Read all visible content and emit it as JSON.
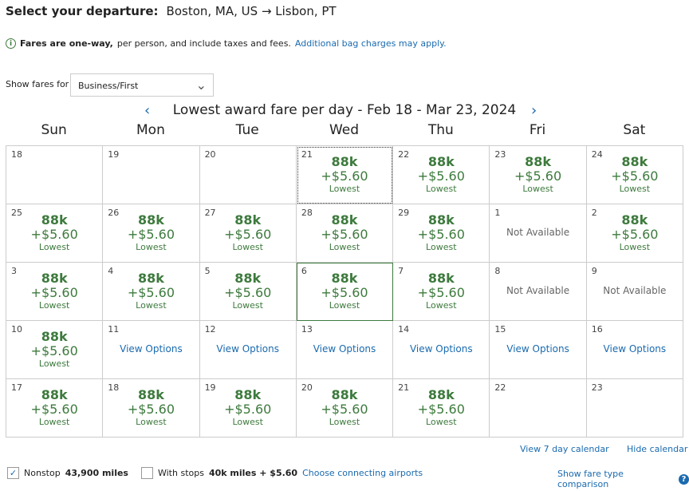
{
  "header": {
    "label": "Select your departure:",
    "route": "Boston, MA, US → Lisbon, PT"
  },
  "info": {
    "bold": "Fares are one-way,",
    "text": "per person, and include taxes and fees.",
    "link": "Additional bag charges may apply."
  },
  "fare_filter": {
    "label": "Show fares for",
    "selected": "Business/First"
  },
  "calendar": {
    "title": "Lowest award fare per day - Feb 18 - Mar 23, 2024",
    "weekdays": [
      "Sun",
      "Mon",
      "Tue",
      "Wed",
      "Thu",
      "Fri",
      "Sat"
    ],
    "cells": [
      {
        "day": "18"
      },
      {
        "day": "19"
      },
      {
        "day": "20"
      },
      {
        "day": "21",
        "miles": "88k",
        "tax": "+$5.60",
        "note": "Lowest",
        "focused": true
      },
      {
        "day": "22",
        "miles": "88k",
        "tax": "+$5.60",
        "note": "Lowest"
      },
      {
        "day": "23",
        "miles": "88k",
        "tax": "+$5.60",
        "note": "Lowest"
      },
      {
        "day": "24",
        "miles": "88k",
        "tax": "+$5.60",
        "note": "Lowest"
      },
      {
        "day": "25",
        "miles": "88k",
        "tax": "+$5.60",
        "note": "Lowest"
      },
      {
        "day": "26",
        "miles": "88k",
        "tax": "+$5.60",
        "note": "Lowest"
      },
      {
        "day": "27",
        "miles": "88k",
        "tax": "+$5.60",
        "note": "Lowest"
      },
      {
        "day": "28",
        "miles": "88k",
        "tax": "+$5.60",
        "note": "Lowest"
      },
      {
        "day": "29",
        "miles": "88k",
        "tax": "+$5.60",
        "note": "Lowest"
      },
      {
        "day": "1",
        "status": "Not Available"
      },
      {
        "day": "2",
        "miles": "88k",
        "tax": "+$5.60",
        "note": "Lowest"
      },
      {
        "day": "3",
        "miles": "88k",
        "tax": "+$5.60",
        "note": "Lowest"
      },
      {
        "day": "4",
        "miles": "88k",
        "tax": "+$5.60",
        "note": "Lowest"
      },
      {
        "day": "5",
        "miles": "88k",
        "tax": "+$5.60",
        "note": "Lowest"
      },
      {
        "day": "6",
        "miles": "88k",
        "tax": "+$5.60",
        "note": "Lowest",
        "selected": true
      },
      {
        "day": "7",
        "miles": "88k",
        "tax": "+$5.60",
        "note": "Lowest"
      },
      {
        "day": "8",
        "status": "Not Available"
      },
      {
        "day": "9",
        "status": "Not Available"
      },
      {
        "day": "10",
        "miles": "88k",
        "tax": "+$5.60",
        "note": "Lowest"
      },
      {
        "day": "11",
        "link": "View Options"
      },
      {
        "day": "12",
        "link": "View Options"
      },
      {
        "day": "13",
        "link": "View Options"
      },
      {
        "day": "14",
        "link": "View Options"
      },
      {
        "day": "15",
        "link": "View Options"
      },
      {
        "day": "16",
        "link": "View Options"
      },
      {
        "day": "17",
        "miles": "88k",
        "tax": "+$5.60",
        "note": "Lowest"
      },
      {
        "day": "18",
        "miles": "88k",
        "tax": "+$5.60",
        "note": "Lowest"
      },
      {
        "day": "19",
        "miles": "88k",
        "tax": "+$5.60",
        "note": "Lowest"
      },
      {
        "day": "20",
        "miles": "88k",
        "tax": "+$5.60",
        "note": "Lowest"
      },
      {
        "day": "21",
        "miles": "88k",
        "tax": "+$5.60",
        "note": "Lowest"
      },
      {
        "day": "22"
      },
      {
        "day": "23"
      }
    ]
  },
  "links": {
    "seven_day": "View 7 day calendar",
    "hide": "Hide calendar",
    "compare": "Show fare type comparison"
  },
  "filters": {
    "nonstop_label": "Nonstop",
    "nonstop_checked": true,
    "nonstop_value": "43,900 miles",
    "stops_label": "With stops",
    "stops_checked": false,
    "stops_value": "40k miles + $5.60",
    "connecting": "Choose connecting airports"
  },
  "colors": {
    "fare_green": "#3d7a3d",
    "link_blue": "#1a6aaf"
  }
}
